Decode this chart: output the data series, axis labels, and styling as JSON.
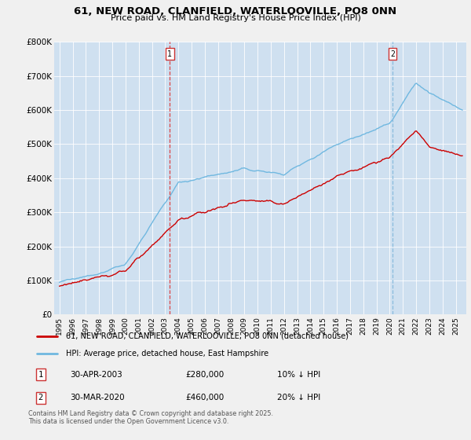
{
  "title": "61, NEW ROAD, CLANFIELD, WATERLOOVILLE, PO8 0NN",
  "subtitle": "Price paid vs. HM Land Registry's House Price Index (HPI)",
  "ylim": [
    0,
    800000
  ],
  "ytick_vals": [
    0,
    100000,
    200000,
    300000,
    400000,
    500000,
    600000,
    700000,
    800000
  ],
  "ytick_labels": [
    "£0",
    "£100K",
    "£200K",
    "£300K",
    "£400K",
    "£500K",
    "£600K",
    "£700K",
    "£800K"
  ],
  "outer_bg": "#f0f0f0",
  "plot_bg_color": "#cfe0f0",
  "grid_color": "#ffffff",
  "legend_entries": [
    "61, NEW ROAD, CLANFIELD, WATERLOOVILLE, PO8 0NN (detached house)",
    "HPI: Average price, detached house, East Hampshire"
  ],
  "price_line_color": "#cc0000",
  "hpi_line_color": "#70b8e0",
  "vline1_color": "#dd4444",
  "vline2_color": "#88bbdd",
  "marker1_year": 2003.33,
  "marker2_year": 2020.25,
  "marker1_date_str": "30-APR-2003",
  "marker1_price": "£280,000",
  "marker1_pct": "10% ↓ HPI",
  "marker2_date_str": "30-MAR-2020",
  "marker2_price": "£460,000",
  "marker2_pct": "20% ↓ HPI",
  "footer": "Contains HM Land Registry data © Crown copyright and database right 2025.\nThis data is licensed under the Open Government Licence v3.0.",
  "xstart": 1995,
  "xend": 2025
}
